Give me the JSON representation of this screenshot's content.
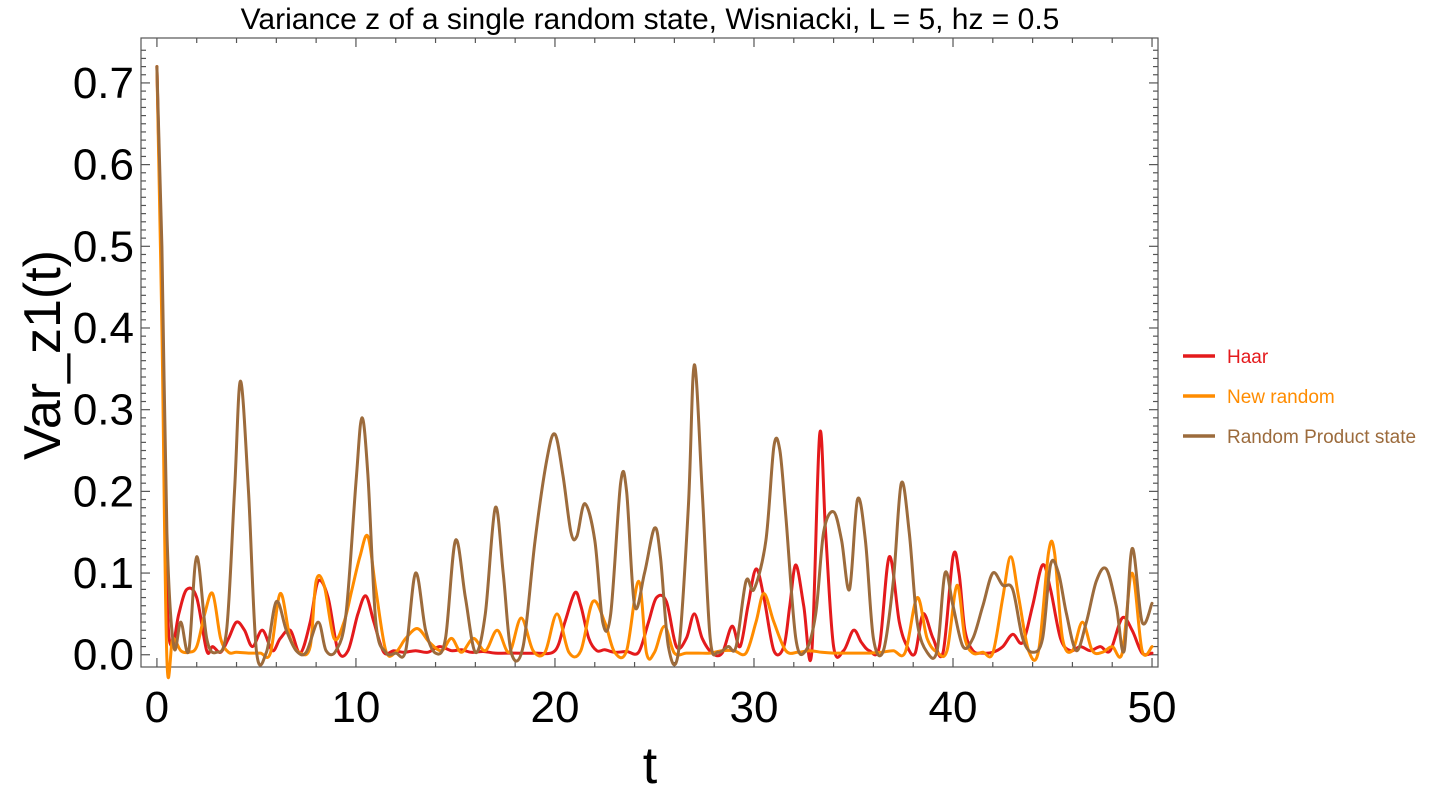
{
  "chart_data": {
    "type": "line",
    "title": "Variance z of a single random state, Wisniacki, L = 5, hz = 0.5",
    "xlabel": "t",
    "ylabel": "Var_z1(t)",
    "xlim": [
      -0.8,
      50.3
    ],
    "ylim": [
      -0.015,
      0.755
    ],
    "xticks": [
      0,
      10,
      20,
      30,
      40,
      50
    ],
    "xtick_labels": [
      "0",
      "10",
      "20",
      "30",
      "40",
      "50"
    ],
    "yticks": [
      0.0,
      0.1,
      0.2,
      0.3,
      0.4,
      0.5,
      0.6,
      0.7
    ],
    "ytick_labels": [
      "0.0",
      "0.1",
      "0.2",
      "0.3",
      "0.4",
      "0.5",
      "0.6",
      "0.7"
    ],
    "grid": false,
    "legend_position": "right",
    "series": [
      {
        "name": "Haar",
        "color": "#e41a1c",
        "x": [
          0,
          0.25,
          0.5,
          0.75,
          1.1,
          1.5,
          2.0,
          2.5,
          2.8,
          3.2,
          3.6,
          4.0,
          4.4,
          4.8,
          5.3,
          5.8,
          6.2,
          6.7,
          7.2,
          7.7,
          8.1,
          8.6,
          9.1,
          9.6,
          10.1,
          10.5,
          10.9,
          11.4,
          11.9,
          12.4,
          13.0,
          13.6,
          14.2,
          14.8,
          15.3,
          15.8,
          16.4,
          17.0,
          18.0,
          19.0,
          20.0,
          20.5,
          21.0,
          21.3,
          21.7,
          22.1,
          22.5,
          23.0,
          23.6,
          24.2,
          24.7,
          25.1,
          25.6,
          26.1,
          26.6,
          27.0,
          27.4,
          27.9,
          28.4,
          28.9,
          29.3,
          29.7,
          30.1,
          30.5,
          31.0,
          31.5,
          31.8,
          32.1,
          32.5,
          32.9,
          33.3,
          33.6,
          34.0,
          34.5,
          35.0,
          35.4,
          35.8,
          36.3,
          36.8,
          37.3,
          37.7,
          38.1,
          38.5,
          39.0,
          39.5,
          40.0,
          40.3,
          40.6,
          41.0,
          41.5,
          42.0,
          42.5,
          43.0,
          43.5,
          44.0,
          44.5,
          44.9,
          45.4,
          45.9,
          46.4,
          46.9,
          47.4,
          47.9,
          48.5,
          49.0,
          49.5,
          50.0
        ],
        "values": [
          0.72,
          0.45,
          0.08,
          0.01,
          0.05,
          0.08,
          0.07,
          0.005,
          0.01,
          0.003,
          0.02,
          0.04,
          0.03,
          0.01,
          0.03,
          0.005,
          0.02,
          0.03,
          0.002,
          0.04,
          0.09,
          0.07,
          0.005,
          0.005,
          0.05,
          0.072,
          0.04,
          0.003,
          0.005,
          0.003,
          0.005,
          0.003,
          0.01,
          0.005,
          0.006,
          0.003,
          0.004,
          0.002,
          0.002,
          0.002,
          0.005,
          0.04,
          0.076,
          0.06,
          0.02,
          0.005,
          0.006,
          0.003,
          0.004,
          0.003,
          0.04,
          0.07,
          0.065,
          0.01,
          0.02,
          0.05,
          0.02,
          0.002,
          0.002,
          0.035,
          0.01,
          0.06,
          0.105,
          0.07,
          0.005,
          0.01,
          0.06,
          0.11,
          0.06,
          0.002,
          0.27,
          0.15,
          0.01,
          0.005,
          0.03,
          0.015,
          0.005,
          0.01,
          0.12,
          0.04,
          0.01,
          0.002,
          0.05,
          0.02,
          0.003,
          0.12,
          0.1,
          0.03,
          0.005,
          0.002,
          0.003,
          0.01,
          0.025,
          0.015,
          0.06,
          0.11,
          0.08,
          0.02,
          0.005,
          0.01,
          0.005,
          0.01,
          0.005,
          0.045,
          0.03,
          0.002,
          0.002
        ]
      },
      {
        "name": "New random",
        "color": "#ff8c00",
        "x": [
          0,
          0.25,
          0.5,
          0.8,
          1.2,
          1.6,
          2.0,
          2.4,
          2.8,
          3.2,
          3.6,
          4.0,
          4.6,
          5.2,
          5.7,
          6.2,
          6.7,
          7.2,
          7.7,
          8.0,
          8.4,
          8.9,
          9.4,
          9.8,
          10.2,
          10.6,
          11.0,
          11.5,
          12.0,
          12.5,
          13.1,
          13.7,
          14.3,
          14.8,
          15.3,
          15.9,
          16.5,
          17.1,
          17.7,
          18.3,
          18.9,
          19.5,
          20.1,
          20.7,
          21.3,
          21.9,
          22.5,
          23.0,
          23.6,
          24.2,
          24.6,
          25.0,
          25.5,
          26.0,
          26.6,
          27.2,
          27.8,
          28.4,
          29.0,
          29.6,
          30.1,
          30.5,
          31.0,
          31.6,
          32.2,
          32.8,
          33.4,
          34.0,
          34.6,
          35.2,
          35.8,
          36.4,
          37.0,
          37.6,
          38.2,
          38.7,
          39.2,
          39.7,
          40.2,
          40.6,
          41.0,
          41.5,
          42.0,
          42.5,
          42.9,
          43.3,
          43.8,
          44.3,
          44.8,
          45.1,
          45.5,
          46.0,
          46.5,
          47.0,
          47.5,
          48.0,
          48.5,
          49.0,
          49.5,
          50.0
        ],
        "values": [
          0.72,
          0.4,
          -0.005,
          0.02,
          0.005,
          0.003,
          0.01,
          0.05,
          0.075,
          0.02,
          0.003,
          0.003,
          0.002,
          0.002,
          0.002,
          0.075,
          0.02,
          0.002,
          0.01,
          0.09,
          0.085,
          0.02,
          0.04,
          0.08,
          0.12,
          0.145,
          0.08,
          0.005,
          0.003,
          0.02,
          0.032,
          0.015,
          0.005,
          0.02,
          0.003,
          0.02,
          0.005,
          0.03,
          0.003,
          0.045,
          0.005,
          0.003,
          0.05,
          0.003,
          0.005,
          0.065,
          0.04,
          0.003,
          0.005,
          0.09,
          0.002,
          0.003,
          0.035,
          0.002,
          0.002,
          0.002,
          0.002,
          0.005,
          0.005,
          0.002,
          0.04,
          0.075,
          0.04,
          0.005,
          0.003,
          0.005,
          0.003,
          0.002,
          0.002,
          0.002,
          0.002,
          0.003,
          0.005,
          0.003,
          0.07,
          0.02,
          0.003,
          0.005,
          0.085,
          0.02,
          0.002,
          0.003,
          0.002,
          0.07,
          0.12,
          0.07,
          0.005,
          0.005,
          0.125,
          0.125,
          0.02,
          0.005,
          0.04,
          0.005,
          0.003,
          0.01,
          0.002,
          0.1,
          0.005,
          0.01
        ]
      },
      {
        "name": "Random Product state",
        "color": "#9c6b3c",
        "x": [
          0,
          0.25,
          0.5,
          0.85,
          1.2,
          1.6,
          2.0,
          2.5,
          3.0,
          3.5,
          3.9,
          4.2,
          4.6,
          5.0,
          5.5,
          6.0,
          6.5,
          7.0,
          7.5,
          8.1,
          8.5,
          9.0,
          9.5,
          10.0,
          10.3,
          10.6,
          11.0,
          11.5,
          12.0,
          12.5,
          13.0,
          13.5,
          14.0,
          14.5,
          15.0,
          15.5,
          16.0,
          16.5,
          17.0,
          17.4,
          17.8,
          18.4,
          19.0,
          19.6,
          20.0,
          20.4,
          20.8,
          21.1,
          21.5,
          22.0,
          22.4,
          22.8,
          23.3,
          23.6,
          24.0,
          24.5,
          25.0,
          25.3,
          25.7,
          26.2,
          26.7,
          27.0,
          27.4,
          27.8,
          28.2,
          28.7,
          29.1,
          29.6,
          30.0,
          30.6,
          31.0,
          31.3,
          31.6,
          32.1,
          32.6,
          33.1,
          33.5,
          34.0,
          34.4,
          34.8,
          35.2,
          35.6,
          36.0,
          36.5,
          37.0,
          37.4,
          37.8,
          38.2,
          38.7,
          39.2,
          39.6,
          40.0,
          40.5,
          41.0,
          41.5,
          42.0,
          42.5,
          43.0,
          43.5,
          44.0,
          44.5,
          44.9,
          45.3,
          45.7,
          46.2,
          46.7,
          47.2,
          47.7,
          48.2,
          48.6,
          49.0,
          49.5,
          50.0
        ],
        "values": [
          0.72,
          0.5,
          0.15,
          0.01,
          0.04,
          0.005,
          0.12,
          0.02,
          0.003,
          0.03,
          0.2,
          0.335,
          0.2,
          0.005,
          0.003,
          0.065,
          0.03,
          0.005,
          0.003,
          0.04,
          0.005,
          0.005,
          0.05,
          0.21,
          0.29,
          0.22,
          0.04,
          0.003,
          0.002,
          0.005,
          0.1,
          0.03,
          0.002,
          0.02,
          0.14,
          0.07,
          0.003,
          0.05,
          0.18,
          0.1,
          0.003,
          0.01,
          0.14,
          0.24,
          0.27,
          0.22,
          0.15,
          0.145,
          0.185,
          0.14,
          0.04,
          0.05,
          0.21,
          0.2,
          0.06,
          0.1,
          0.155,
          0.12,
          0.01,
          0.003,
          0.18,
          0.355,
          0.2,
          0.02,
          0.003,
          0.01,
          0.01,
          0.09,
          0.08,
          0.14,
          0.255,
          0.25,
          0.17,
          0.02,
          0.005,
          0.05,
          0.15,
          0.175,
          0.14,
          0.08,
          0.19,
          0.14,
          0.02,
          0.005,
          0.09,
          0.21,
          0.15,
          0.04,
          0.003,
          0.005,
          0.1,
          0.06,
          0.01,
          0.02,
          0.06,
          0.1,
          0.085,
          0.08,
          0.02,
          0.003,
          0.02,
          0.11,
          0.1,
          0.05,
          0.005,
          0.04,
          0.09,
          0.105,
          0.06,
          0.005,
          0.13,
          0.04,
          0.063
        ]
      }
    ]
  }
}
